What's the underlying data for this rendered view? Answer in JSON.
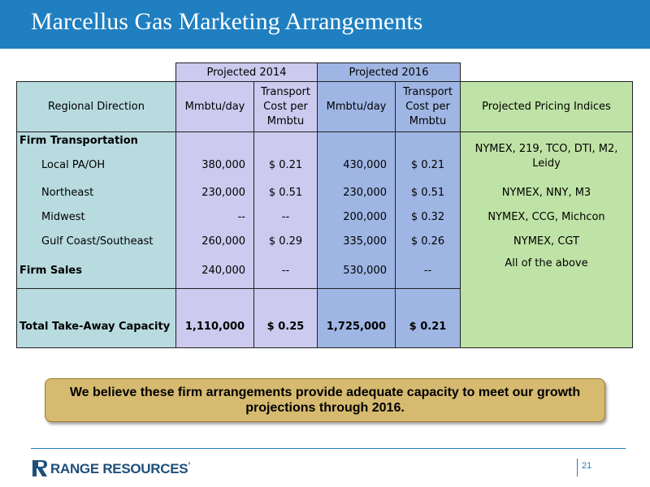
{
  "title": "Marcellus Gas Marketing Arrangements",
  "table": {
    "group_headers": {
      "p2014": "Projected  2014",
      "p2016": "Projected  2016"
    },
    "headers": {
      "region": "Regional Direction",
      "mmbtu_2014": "Mmbtu/day",
      "cost_2014": "Transport Cost per Mmbtu",
      "mmbtu_2016": "Mmbtu/day",
      "cost_2016": "Transport Cost per Mmbtu",
      "pricing": "Projected Pricing Indices"
    },
    "firm_transportation_label": "Firm Transportation",
    "rows": [
      {
        "region": "Local PA/OH",
        "mmbtu_2014": "380,000",
        "cost_2014": "$  0.21",
        "mmbtu_2016": "430,000",
        "cost_2016": "$  0.21",
        "pricing": "NYMEX, 219, TCO, DTI, M2, Leidy"
      },
      {
        "region": "Northeast",
        "mmbtu_2014": "230,000",
        "cost_2014": "$  0.51",
        "mmbtu_2016": "230,000",
        "cost_2016": "$  0.51",
        "pricing": "NYMEX, NNY, M3"
      },
      {
        "region": "Midwest",
        "mmbtu_2014": "--",
        "cost_2014": "--",
        "mmbtu_2016": "200,000",
        "cost_2016": "$  0.32",
        "pricing": "NYMEX, CCG, Michcon"
      },
      {
        "region": "Gulf Coast/Southeast",
        "mmbtu_2014": "260,000",
        "cost_2014": "$  0.29",
        "mmbtu_2016": "335,000",
        "cost_2016": "$  0.26",
        "pricing": "NYMEX, CGT"
      }
    ],
    "firm_sales": {
      "region": "Firm Sales",
      "mmbtu_2014": "240,000",
      "cost_2014": "--",
      "mmbtu_2016": "530,000",
      "cost_2016": "--",
      "pricing": "All of the above"
    },
    "total": {
      "region": "Total Take-Away Capacity",
      "mmbtu_2014": "1,110,000",
      "cost_2014": "$  0.25",
      "mmbtu_2016": "1,725,000",
      "cost_2016": "$  0.21"
    }
  },
  "callout": "We believe these firm arrangements provide adequate capacity to meet our growth projections through 2016.",
  "footer": {
    "logo_text": "RANGE RESOURCES",
    "logo_reg": "’",
    "page_number": "21"
  },
  "colors": {
    "header_bar": "#1f7fc0",
    "region_col": "#b8dbe0",
    "proj_2014": "#cccaee",
    "proj_2016": "#9fb6e4",
    "pricing_col": "#bfe3a6",
    "callout_bg": "#d6ba70"
  }
}
